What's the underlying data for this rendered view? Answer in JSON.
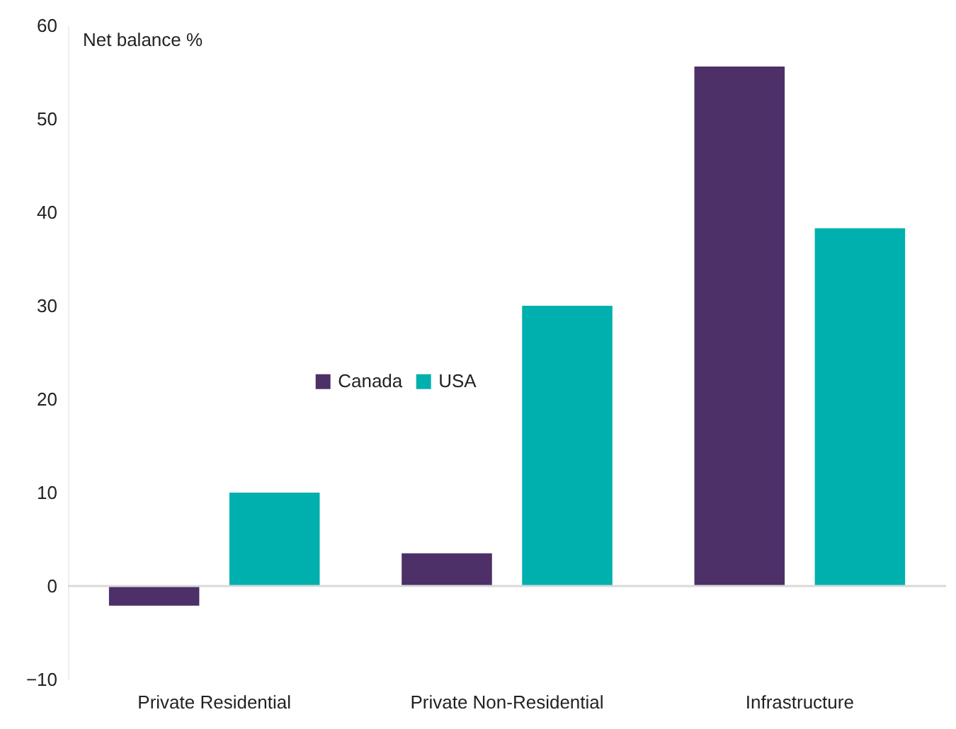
{
  "chart_data": {
    "type": "bar",
    "ylabel": "Net balance %",
    "categories": [
      "Private Residential",
      "Private Non-Residential",
      "Infrastructure"
    ],
    "series": [
      {
        "name": "Canada",
        "color": "#4d3068",
        "values": [
          -2.1,
          3.5,
          55.6
        ]
      },
      {
        "name": "USA",
        "color": "#00b0ae",
        "values": [
          10.0,
          30.0,
          38.3
        ]
      }
    ],
    "ylim": [
      -10,
      60
    ],
    "yticks": [
      -10,
      0,
      10,
      20,
      30,
      40,
      50,
      60
    ],
    "legend": "center",
    "ref_lines": [
      {
        "axis": "y",
        "value": 0,
        "color": "#d9d9d9"
      }
    ]
  }
}
